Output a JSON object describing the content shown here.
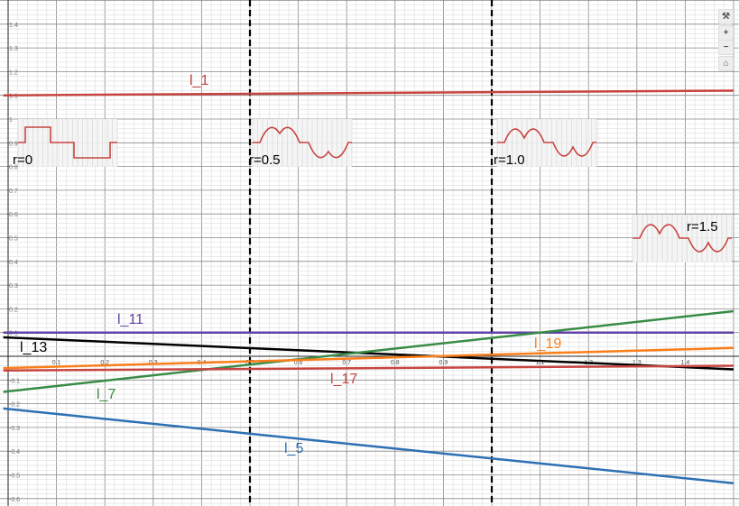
{
  "chart_data": {
    "type": "line",
    "xlim": [
      -0.01,
      1.5
    ],
    "ylim": [
      -0.6,
      1.5
    ],
    "grid": true,
    "x_ticks": [
      "0.1",
      "0.2",
      "0.3",
      "0.4",
      "0.5",
      "0.6",
      "0.7",
      "0.8",
      "0.9",
      "1.1",
      "1.2",
      "1.3",
      "1.4"
    ],
    "y_ticks": [
      "1.4",
      "1.3",
      "1.2",
      "1.1",
      "1",
      "0.9",
      "0.8",
      "0.7",
      "0.6",
      "0.5",
      "0.4",
      "0.3",
      "0.2",
      "0.1",
      "-0.1",
      "-0.2",
      "-0.3",
      "-0.4",
      "-0.5",
      "-0.6"
    ],
    "vertical_dashed_lines": [
      0.5,
      1.0
    ],
    "series": [
      {
        "name": "l_1",
        "color": "#c74440",
        "x": [
          -0.01,
          1.5
        ],
        "y": [
          1.1,
          1.12
        ]
      },
      {
        "name": "l_11",
        "color": "#6042a6",
        "x": [
          -0.01,
          1.5
        ],
        "y": [
          0.1,
          0.1
        ]
      },
      {
        "name": "l_13",
        "color": "#000000",
        "x": [
          -0.01,
          1.5
        ],
        "y": [
          0.08,
          -0.055
        ]
      },
      {
        "name": "l_7",
        "color": "#388c46",
        "x": [
          -0.01,
          1.5
        ],
        "y": [
          -0.15,
          0.19
        ]
      },
      {
        "name": "l_19",
        "color": "#fa7e19",
        "x": [
          -0.01,
          1.5
        ],
        "y": [
          -0.05,
          0.035
        ]
      },
      {
        "name": "l_17",
        "color": "#c74440",
        "x": [
          -0.01,
          1.5
        ],
        "y": [
          -0.06,
          -0.04
        ]
      },
      {
        "name": "l_5",
        "color": "#2d70b3",
        "x": [
          -0.01,
          1.5
        ],
        "y": [
          -0.22,
          -0.535
        ]
      }
    ],
    "insets": [
      {
        "label": "r=0",
        "r": 0
      },
      {
        "label": "r=0.5",
        "r": 0.5
      },
      {
        "label": "r=1.0",
        "r": 1.0
      },
      {
        "label": "r=1.5",
        "r": 1.5
      }
    ]
  },
  "controls": {
    "settings": "wrench-icon",
    "zoom_in": "+",
    "zoom_out": "−",
    "home": "home-icon"
  }
}
